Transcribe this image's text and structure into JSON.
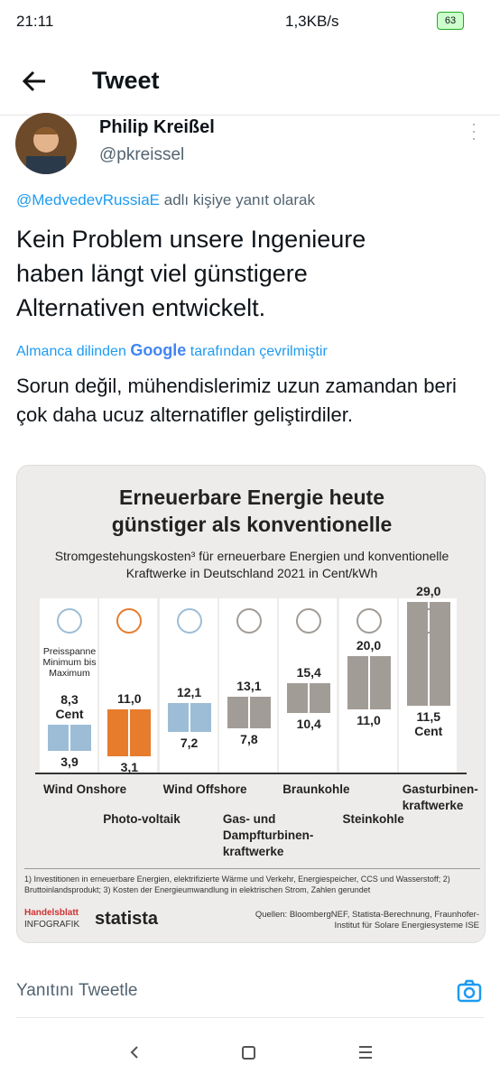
{
  "status_bar": {
    "time": "21:11",
    "speed": "1,3KB/s",
    "battery": "63"
  },
  "header": {
    "title": "Tweet"
  },
  "tweet": {
    "name": "Philip Kreißel",
    "handle": "@pkreissel",
    "reply_to": "@MedvedevRussiaE",
    "reply_suffix": "adlı kişiye yanıt olarak",
    "text": "Kein Problem unsere Ingenieure haben längt viel günstigere Alternativen entwickelt.",
    "translation_prefix": "Almanca dilinden",
    "translation_brand": "Google",
    "translation_suffix": "tarafından çevrilmiştir",
    "translation": "Sorun değil, mühendislerimiz uzun zamandan beri çok daha ucuz alternatifler geliştirdiler."
  },
  "chart_data": {
    "type": "floating-bar",
    "title": "Erneuerbare Energie heute günstiger als konventionelle",
    "subtitle": "Stromgestehungskosten³ für erneuerbare Energien und konventionelle Kraftwerke in Deutschland 2021 in Cent/kWh",
    "range_note": "Preisspanne Minimum bis Maximum",
    "categories": [
      "Wind Onshore",
      "Photo-voltaik",
      "Wind Offshore",
      "Gas- und Dampfturbinen-kraftwerke",
      "Braunkohle",
      "Steinkohle",
      "Gasturbinen-kraftwerke"
    ],
    "min": [
      3.9,
      3.1,
      7.2,
      7.8,
      10.4,
      11.0,
      11.5
    ],
    "min_labels": [
      "3,9",
      "3,1",
      "7,2",
      "7,8",
      "10,4",
      "11,0",
      "11,5 Cent"
    ],
    "max": [
      8.3,
      11.0,
      12.1,
      13.1,
      15.4,
      20.0,
      29.0
    ],
    "max_labels": [
      "8,3 Cent",
      "11,0",
      "12,1",
      "13,1",
      "15,4",
      "20,0",
      "29,0"
    ],
    "colors": [
      "#9dbdd6",
      "#e77c2c",
      "#9dbdd6",
      "#a29c97",
      "#a29c97",
      "#a29c97",
      "#a29c97"
    ],
    "footnotes": "1) Investitionen in erneuerbare Energien, elektrifizierte Wärme und Verkehr, Energiespeicher, CCS und Wasserstoff; 2) Bruttoinlandsprodukt; 3) Kosten der Energieumwandlung in elektrischen Strom, Zahlen gerundet",
    "publisher": "Handelsblatt",
    "publisher_section": "INFOGRAFIK",
    "partner": "statista",
    "sources": "Quellen: BloombergNEF, Statista-Berechnung, Fraunhofer-Institut für Solare Energiesysteme ISE"
  },
  "reply_bar": {
    "placeholder": "Yanıtını Tweetle"
  }
}
